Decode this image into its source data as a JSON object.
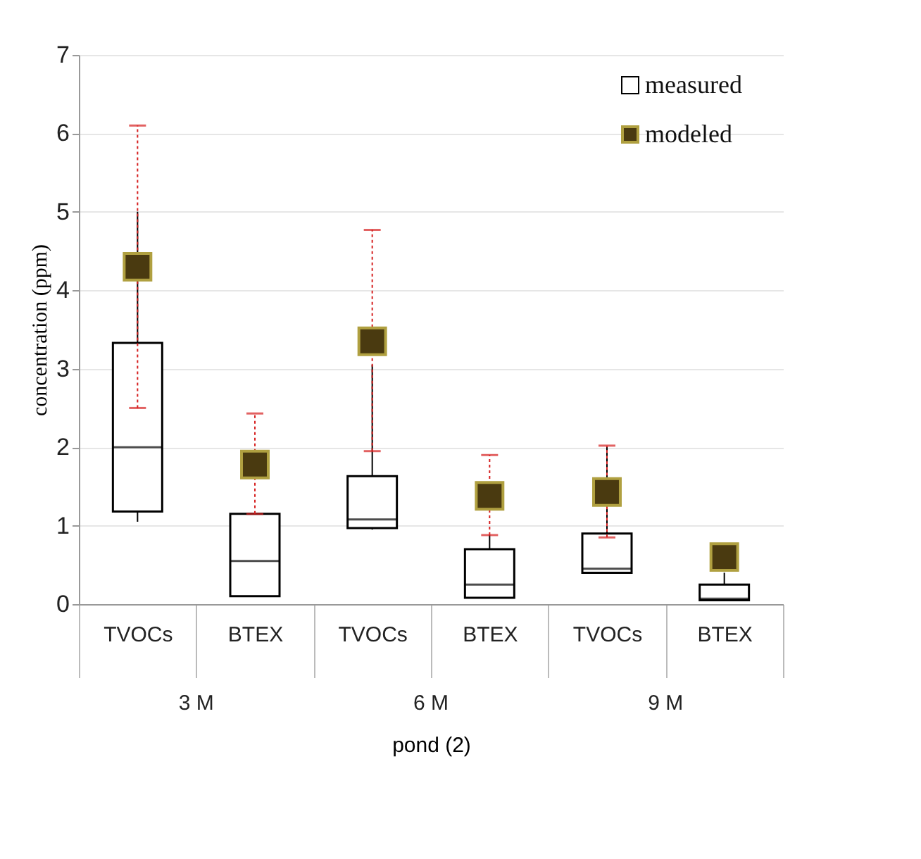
{
  "chart_data": {
    "type": "box",
    "ylabel": "concentration (ppm)",
    "xlabel": "pond (2)",
    "categories": [
      "TVOCs",
      "BTEX",
      "TVOCs",
      "BTEX",
      "TVOCs",
      "BTEX"
    ],
    "annotations": [
      "3 M",
      "6 M",
      "9 M"
    ],
    "ylim": [
      0,
      7
    ],
    "yticks": [
      0,
      1,
      2,
      3,
      4,
      5,
      6,
      7
    ],
    "grid": "y",
    "legend": "top right",
    "series": [
      {
        "name": "measured",
        "type": "box",
        "color": "#000000",
        "boxes": [
          {
            "low": 1.05,
            "q1": 1.18,
            "median": 2.0,
            "q3": 3.33,
            "high": 5.0
          },
          {
            "low": 0.1,
            "q1": 0.1,
            "median": 0.55,
            "q3": 1.15,
            "high": 1.15
          },
          {
            "low": 0.95,
            "q1": 0.97,
            "median": 1.08,
            "q3": 1.63,
            "high": 3.05
          },
          {
            "low": 0.08,
            "q1": 0.08,
            "median": 0.25,
            "q3": 0.7,
            "high": 0.88
          },
          {
            "low": 0.4,
            "q1": 0.4,
            "median": 0.45,
            "q3": 0.9,
            "high": 2.02
          },
          {
            "low": 0.05,
            "q1": 0.05,
            "median": 0.07,
            "q3": 0.25,
            "high": 0.4
          }
        ]
      },
      {
        "name": "modeled",
        "type": "scatter",
        "marker": "square",
        "color": "#4a3a10",
        "values": [
          4.3,
          1.78,
          3.35,
          1.38,
          1.43,
          0.6
        ],
        "errors": [
          [
            2.5,
            6.1
          ],
          [
            1.15,
            2.43
          ],
          [
            1.95,
            4.77
          ],
          [
            0.88,
            1.9
          ],
          [
            0.85,
            2.02
          ],
          null
        ]
      }
    ]
  }
}
